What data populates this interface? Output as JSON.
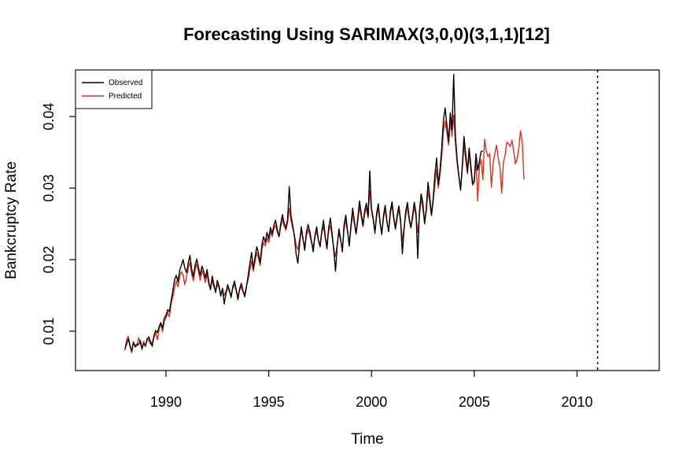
{
  "chart_data": {
    "type": "line",
    "title": "Forecasting Using SARIMAX(3,0,0)(3,1,1)[12]",
    "xlabel": "Time",
    "ylabel": "Bankcruptcy Rate",
    "xlim": [
      1985.6,
      2014.0
    ],
    "ylim": [
      0.0045,
      0.0465
    ],
    "x_ticks": [
      1990,
      1995,
      2000,
      2005,
      2010
    ],
    "y_ticks": [
      0.01,
      0.02,
      0.03,
      0.04
    ],
    "x_tick_labels": [
      "1990",
      "1995",
      "2000",
      "2005",
      "2010"
    ],
    "y_tick_labels": [
      "0.01",
      "0.02",
      "0.03",
      "0.04"
    ],
    "grid": false,
    "legend_position": "top-left",
    "forecast_start": 2011.0,
    "series": [
      {
        "name": "Observed",
        "color": "#000000",
        "start": 1988.0,
        "step": 0.08333333,
        "values": [
          0.0075,
          0.0082,
          0.0089,
          0.0079,
          0.0072,
          0.0085,
          0.0078,
          0.0082,
          0.0081,
          0.0087,
          0.0076,
          0.0083,
          0.008,
          0.0088,
          0.0092,
          0.0085,
          0.0079,
          0.0094,
          0.0101,
          0.0098,
          0.0106,
          0.0112,
          0.0104,
          0.0118,
          0.0122,
          0.013,
          0.0127,
          0.0142,
          0.0156,
          0.0172,
          0.0178,
          0.0169,
          0.0185,
          0.0192,
          0.02,
          0.0188,
          0.0182,
          0.0195,
          0.0206,
          0.0187,
          0.0176,
          0.0192,
          0.0201,
          0.0189,
          0.0178,
          0.0191,
          0.0184,
          0.0174,
          0.0186,
          0.0169,
          0.0158,
          0.0177,
          0.0165,
          0.0154,
          0.0171,
          0.0163,
          0.0149,
          0.016,
          0.0138,
          0.0152,
          0.0165,
          0.0158,
          0.0147,
          0.0162,
          0.017,
          0.0158,
          0.0144,
          0.0159,
          0.0167,
          0.0156,
          0.0148,
          0.0162,
          0.0178,
          0.0195,
          0.021,
          0.0187,
          0.0203,
          0.0218,
          0.0209,
          0.0195,
          0.0221,
          0.0232,
          0.0224,
          0.0238,
          0.0229,
          0.0245,
          0.0236,
          0.0248,
          0.0255,
          0.0242,
          0.0232,
          0.025,
          0.0263,
          0.0251,
          0.0244,
          0.0256,
          0.0302,
          0.0261,
          0.0248,
          0.0232,
          0.0208,
          0.0195,
          0.0221,
          0.0246,
          0.023,
          0.0213,
          0.0238,
          0.0249,
          0.0239,
          0.0225,
          0.0211,
          0.0234,
          0.0246,
          0.0227,
          0.0218,
          0.024,
          0.0255,
          0.0232,
          0.0215,
          0.0245,
          0.0258,
          0.0236,
          0.0212,
          0.0184,
          0.022,
          0.0243,
          0.0228,
          0.0211,
          0.0249,
          0.0262,
          0.0241,
          0.0219,
          0.0247,
          0.0272,
          0.0254,
          0.0236,
          0.0258,
          0.0282,
          0.0265,
          0.0248,
          0.0268,
          0.0279,
          0.0261,
          0.0324,
          0.0271,
          0.0258,
          0.0237,
          0.0265,
          0.0278,
          0.0252,
          0.0235,
          0.0262,
          0.0276,
          0.0254,
          0.0239,
          0.0268,
          0.0281,
          0.0259,
          0.0244,
          0.0262,
          0.0275,
          0.0255,
          0.0208,
          0.0242,
          0.0268,
          0.028,
          0.0258,
          0.0245,
          0.0262,
          0.028,
          0.0265,
          0.0202,
          0.0268,
          0.0292,
          0.0279,
          0.025,
          0.0272,
          0.0308,
          0.0288,
          0.0262,
          0.0285,
          0.0318,
          0.0342,
          0.0305,
          0.0325,
          0.0356,
          0.0395,
          0.0412,
          0.0388,
          0.0365,
          0.0405,
          0.0382,
          0.0459,
          0.0372,
          0.034,
          0.0318,
          0.0297,
          0.0331,
          0.0372,
          0.0348,
          0.0323,
          0.0356,
          0.0332,
          0.0306,
          0.0311,
          0.0348,
          0.0325,
          0.0338,
          0.0351,
          0.0352
        ]
      },
      {
        "name": "Predicted",
        "color": "#d9321f",
        "start": 1988.0,
        "step": 0.08333333,
        "values": [
          0.0073,
          0.0088,
          0.0093,
          0.0081,
          0.007,
          0.0084,
          0.008,
          0.0079,
          0.0091,
          0.0084,
          0.0074,
          0.0086,
          0.0078,
          0.009,
          0.0087,
          0.0082,
          0.0085,
          0.0091,
          0.0098,
          0.0088,
          0.0103,
          0.011,
          0.0099,
          0.0114,
          0.0118,
          0.0126,
          0.012,
          0.0138,
          0.0148,
          0.016,
          0.017,
          0.0162,
          0.0176,
          0.0183,
          0.0179,
          0.0165,
          0.0176,
          0.0188,
          0.0196,
          0.018,
          0.017,
          0.0186,
          0.0194,
          0.0183,
          0.0171,
          0.0185,
          0.0178,
          0.0168,
          0.018,
          0.0165,
          0.016,
          0.0171,
          0.0161,
          0.0157,
          0.0165,
          0.016,
          0.0152,
          0.0158,
          0.015,
          0.0156,
          0.016,
          0.0155,
          0.015,
          0.016,
          0.0165,
          0.0156,
          0.015,
          0.0157,
          0.0162,
          0.0155,
          0.0152,
          0.0163,
          0.0172,
          0.0186,
          0.0198,
          0.0184,
          0.0197,
          0.021,
          0.0202,
          0.0192,
          0.0214,
          0.0224,
          0.0219,
          0.023,
          0.0224,
          0.0239,
          0.0232,
          0.0243,
          0.0248,
          0.0238,
          0.0232,
          0.0246,
          0.0256,
          0.0247,
          0.0241,
          0.0252,
          0.0272,
          0.0255,
          0.0244,
          0.0235,
          0.022,
          0.0214,
          0.0228,
          0.0241,
          0.0228,
          0.0218,
          0.0234,
          0.0242,
          0.0234,
          0.0224,
          0.0218,
          0.0232,
          0.024,
          0.0226,
          0.0222,
          0.0238,
          0.0246,
          0.023,
          0.0222,
          0.024,
          0.0248,
          0.0232,
          0.0216,
          0.0204,
          0.0222,
          0.0238,
          0.0226,
          0.0216,
          0.0243,
          0.0255,
          0.0238,
          0.0223,
          0.0244,
          0.0264,
          0.025,
          0.0236,
          0.0254,
          0.0274,
          0.026,
          0.0246,
          0.0264,
          0.0272,
          0.0258,
          0.0296,
          0.0268,
          0.0255,
          0.024,
          0.026,
          0.0272,
          0.025,
          0.0238,
          0.0258,
          0.027,
          0.0252,
          0.024,
          0.0264,
          0.0276,
          0.0256,
          0.0242,
          0.0258,
          0.027,
          0.0252,
          0.0226,
          0.0244,
          0.0262,
          0.0274,
          0.0255,
          0.0244,
          0.0258,
          0.0274,
          0.026,
          0.0238,
          0.0262,
          0.0285,
          0.0272,
          0.0252,
          0.0268,
          0.0296,
          0.028,
          0.0262,
          0.0281,
          0.0305,
          0.0326,
          0.03,
          0.0318,
          0.0344,
          0.038,
          0.0394,
          0.0378,
          0.036,
          0.0392,
          0.0372,
          0.0402,
          0.0362,
          0.0334,
          0.0316,
          0.03,
          0.0326,
          0.036,
          0.034,
          0.032,
          0.0346,
          0.0326,
          0.0304,
          0.0308,
          0.034,
          0.0282,
          0.033,
          0.034,
          0.0312,
          0.0368,
          0.0352,
          0.0344,
          0.0348,
          0.0301,
          0.0335,
          0.0348,
          0.036,
          0.0342,
          0.0329,
          0.0293,
          0.0336,
          0.0346,
          0.0364,
          0.0362,
          0.0358,
          0.0367,
          0.0352,
          0.0334,
          0.034,
          0.0356,
          0.038,
          0.0365,
          0.0312
        ]
      }
    ]
  }
}
